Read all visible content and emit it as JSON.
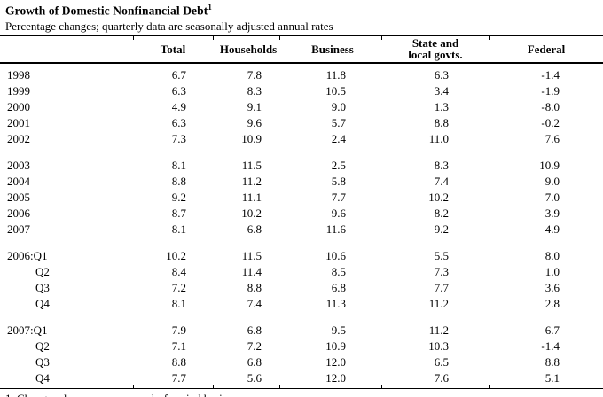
{
  "colors": {
    "background": "#ffffff",
    "text": "#000000",
    "rule": "#000000"
  },
  "title": {
    "text": "Growth of Domestic Nonfinancial Debt",
    "superscript": "1"
  },
  "subtitle": "Percentage changes; quarterly data are seasonally adjusted annual rates",
  "footnote": "1. Changes shown are on an end-of-period basis.",
  "table": {
    "columns": [
      "Total",
      "Households",
      "Business",
      "State and\nlocal govts.",
      "Federal"
    ],
    "groups": [
      {
        "rows": [
          {
            "label": "1998",
            "indent": false,
            "values": [
              "6.7",
              "7.8",
              "11.8",
              "6.3",
              "-1.4"
            ]
          },
          {
            "label": "1999",
            "indent": false,
            "values": [
              "6.3",
              "8.3",
              "10.5",
              "3.4",
              "-1.9"
            ]
          },
          {
            "label": "2000",
            "indent": false,
            "values": [
              "4.9",
              "9.1",
              "9.0",
              "1.3",
              "-8.0"
            ]
          },
          {
            "label": "2001",
            "indent": false,
            "values": [
              "6.3",
              "9.6",
              "5.7",
              "8.8",
              "-0.2"
            ]
          },
          {
            "label": "2002",
            "indent": false,
            "values": [
              "7.3",
              "10.9",
              "2.4",
              "11.0",
              "7.6"
            ]
          }
        ]
      },
      {
        "rows": [
          {
            "label": "2003",
            "indent": false,
            "values": [
              "8.1",
              "11.5",
              "2.5",
              "8.3",
              "10.9"
            ]
          },
          {
            "label": "2004",
            "indent": false,
            "values": [
              "8.8",
              "11.2",
              "5.8",
              "7.4",
              "9.0"
            ]
          },
          {
            "label": "2005",
            "indent": false,
            "values": [
              "9.2",
              "11.1",
              "7.7",
              "10.2",
              "7.0"
            ]
          },
          {
            "label": "2006",
            "indent": false,
            "values": [
              "8.7",
              "10.2",
              "9.6",
              "8.2",
              "3.9"
            ]
          },
          {
            "label": "2007",
            "indent": false,
            "values": [
              "8.1",
              "6.8",
              "11.6",
              "9.2",
              "4.9"
            ]
          }
        ]
      },
      {
        "rows": [
          {
            "label": "2006:Q1",
            "indent": false,
            "values": [
              "10.2",
              "11.5",
              "10.6",
              "5.5",
              "8.0"
            ]
          },
          {
            "label": "Q2",
            "indent": true,
            "values": [
              "8.4",
              "11.4",
              "8.5",
              "7.3",
              "1.0"
            ]
          },
          {
            "label": "Q3",
            "indent": true,
            "values": [
              "7.2",
              "8.8",
              "6.8",
              "7.7",
              "3.6"
            ]
          },
          {
            "label": "Q4",
            "indent": true,
            "values": [
              "8.1",
              "7.4",
              "11.3",
              "11.2",
              "2.8"
            ]
          }
        ]
      },
      {
        "rows": [
          {
            "label": "2007:Q1",
            "indent": false,
            "values": [
              "7.9",
              "6.8",
              "9.5",
              "11.2",
              "6.7"
            ]
          },
          {
            "label": "Q2",
            "indent": true,
            "values": [
              "7.1",
              "7.2",
              "10.9",
              "10.3",
              "-1.4"
            ]
          },
          {
            "label": "Q3",
            "indent": true,
            "values": [
              "8.8",
              "6.8",
              "12.0",
              "6.5",
              "8.8"
            ]
          },
          {
            "label": "Q4",
            "indent": true,
            "values": [
              "7.7",
              "5.6",
              "12.0",
              "7.6",
              "5.1"
            ]
          }
        ]
      }
    ]
  }
}
